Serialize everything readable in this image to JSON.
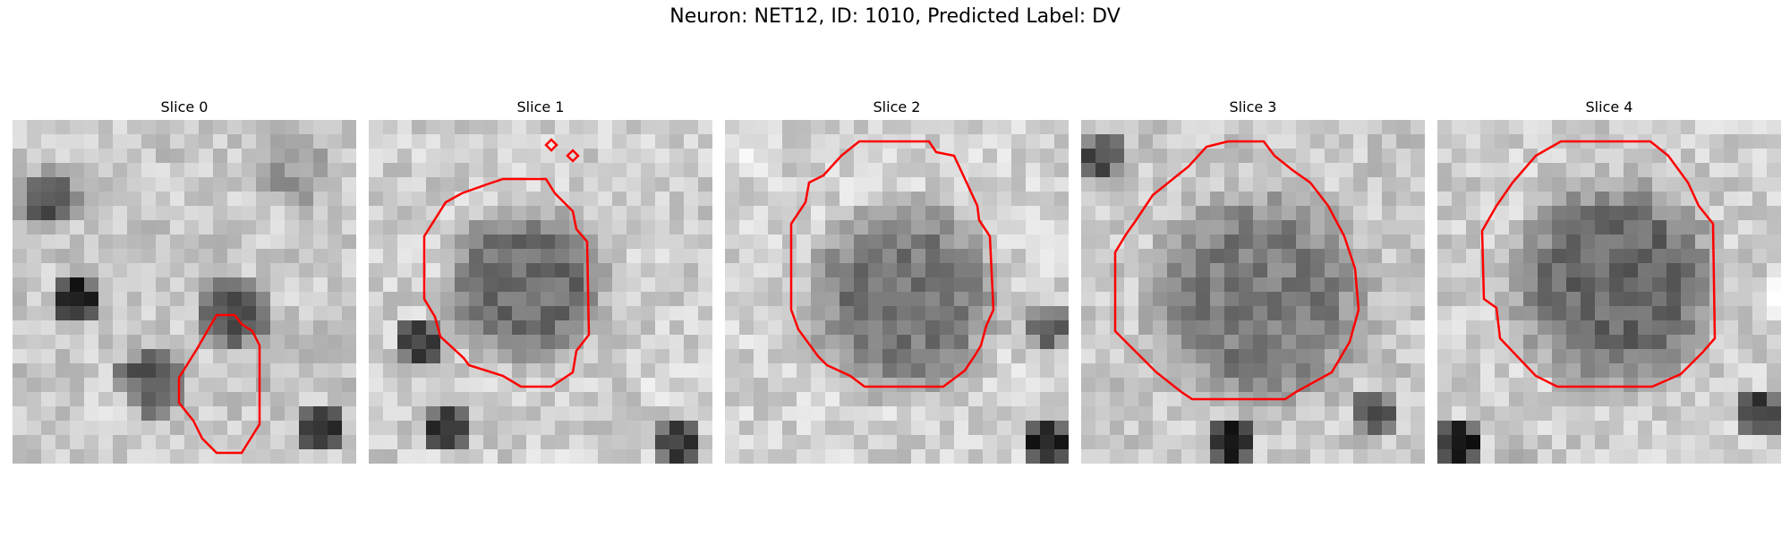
{
  "figure": {
    "suptitle": "Neuron: NET12, ID: 1010, Predicted Label: DV",
    "contour_color": "#ff0000",
    "colormap": "gray",
    "slices": [
      {
        "title": "Slice 0"
      },
      {
        "title": "Slice 1"
      },
      {
        "title": "Slice 2"
      },
      {
        "title": "Slice 3"
      },
      {
        "title": "Slice 4"
      }
    ]
  }
}
